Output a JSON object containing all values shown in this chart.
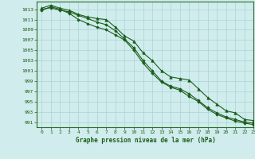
{
  "title": "Graphe pression niveau de la mer (hPa)",
  "background_color": "#d0ecec",
  "grid_color": "#a8d4d4",
  "line_color": "#1a5c1a",
  "xlim": [
    -0.5,
    23
  ],
  "ylim": [
    990,
    1014.5
  ],
  "yticks": [
    991,
    993,
    995,
    997,
    999,
    1001,
    1003,
    1005,
    1007,
    1009,
    1011,
    1013
  ],
  "xticks": [
    0,
    1,
    2,
    3,
    4,
    5,
    6,
    7,
    8,
    9,
    10,
    11,
    12,
    13,
    14,
    15,
    16,
    17,
    18,
    19,
    20,
    21,
    22,
    23
  ],
  "series": [
    [
      1013.2,
      1013.8,
      1013.2,
      1012.8,
      1012.0,
      1011.5,
      1011.2,
      1011.0,
      1009.5,
      1007.8,
      1006.8,
      1004.5,
      1003.0,
      1001.0,
      999.8,
      999.5,
      999.2,
      997.5,
      995.8,
      994.5,
      993.2,
      992.8,
      991.5,
      991.3
    ],
    [
      1013.0,
      1013.3,
      1012.8,
      1012.5,
      1011.8,
      1011.2,
      1010.5,
      1010.0,
      1008.8,
      1007.2,
      1005.5,
      1003.0,
      1001.0,
      999.0,
      998.0,
      997.5,
      996.5,
      995.2,
      993.8,
      992.8,
      992.0,
      991.5,
      991.0,
      990.8
    ],
    [
      1012.8,
      1013.5,
      1013.0,
      1012.2,
      1011.0,
      1010.2,
      1009.5,
      1009.0,
      1008.0,
      1007.0,
      1005.0,
      1002.5,
      1000.5,
      998.8,
      997.8,
      997.2,
      996.0,
      995.0,
      993.5,
      992.5,
      991.8,
      991.2,
      990.8,
      990.5
    ]
  ]
}
